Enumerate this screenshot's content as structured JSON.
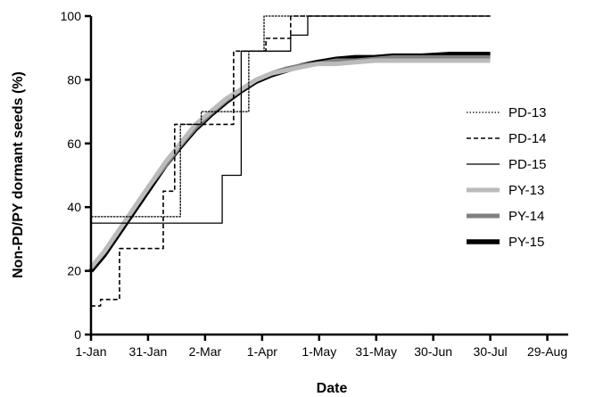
{
  "chart_data": {
    "type": "line",
    "title": "",
    "xlabel": "Date",
    "ylabel": "Non-PD/PY dormant seeds (%)",
    "x_unit": "day of year",
    "xlim": [
      1,
      252
    ],
    "ylim": [
      0,
      100
    ],
    "x_ticks": [
      {
        "day": 1,
        "label": "1-Jan"
      },
      {
        "day": 31,
        "label": "31-Jan"
      },
      {
        "day": 61,
        "label": "2-Mar"
      },
      {
        "day": 91,
        "label": "1-Apr"
      },
      {
        "day": 121,
        "label": "1-May"
      },
      {
        "day": 151,
        "label": "31-May"
      },
      {
        "day": 181,
        "label": "30-Jun"
      },
      {
        "day": 211,
        "label": "30-Jul"
      },
      {
        "day": 241,
        "label": "29-Aug"
      }
    ],
    "y_ticks": [
      0,
      20,
      40,
      60,
      80,
      100
    ],
    "grid": false,
    "legend_position": "right",
    "series": [
      {
        "name": "PD-13",
        "style": "dotted",
        "color": "#000000",
        "stroke": "thin",
        "points": [
          [
            1,
            0
          ],
          [
            1,
            37
          ],
          [
            48,
            37
          ],
          [
            48,
            66
          ],
          [
            59,
            66
          ],
          [
            59,
            70
          ],
          [
            84,
            70
          ],
          [
            84,
            89
          ],
          [
            92,
            89
          ],
          [
            92,
            100
          ],
          [
            211,
            100
          ]
        ]
      },
      {
        "name": "PD-14",
        "style": "dashed",
        "color": "#000000",
        "stroke": "medium",
        "points": [
          [
            1,
            0
          ],
          [
            1,
            9
          ],
          [
            6,
            9
          ],
          [
            6,
            11
          ],
          [
            16,
            11
          ],
          [
            16,
            27
          ],
          [
            39,
            27
          ],
          [
            39,
            45
          ],
          [
            45,
            45
          ],
          [
            45,
            66
          ],
          [
            58,
            66
          ],
          [
            58,
            66
          ],
          [
            76,
            66
          ],
          [
            76,
            89
          ],
          [
            93,
            89
          ],
          [
            93,
            93
          ],
          [
            106,
            93
          ],
          [
            106,
            100
          ],
          [
            211,
            100
          ]
        ]
      },
      {
        "name": "PD-15",
        "style": "solid",
        "color": "#000000",
        "stroke": "thin",
        "points": [
          [
            1,
            15
          ],
          [
            1,
            35
          ],
          [
            42,
            35
          ],
          [
            42,
            35
          ],
          [
            70,
            35
          ],
          [
            70,
            50
          ],
          [
            80,
            50
          ],
          [
            80,
            89
          ],
          [
            106,
            89
          ],
          [
            106,
            94
          ],
          [
            115,
            94
          ],
          [
            115,
            100
          ],
          [
            211,
            100
          ]
        ]
      },
      {
        "name": "PY-13",
        "style": "solid",
        "color": "#bbbbbb",
        "stroke": "thick",
        "points": [
          [
            1,
            21
          ],
          [
            8,
            26
          ],
          [
            16,
            33
          ],
          [
            24,
            40
          ],
          [
            32,
            47
          ],
          [
            40,
            54
          ],
          [
            48,
            60
          ],
          [
            56,
            66
          ],
          [
            64,
            70
          ],
          [
            72,
            74
          ],
          [
            80,
            77
          ],
          [
            88,
            80
          ],
          [
            96,
            82
          ],
          [
            104,
            83
          ],
          [
            112,
            84
          ],
          [
            120,
            85
          ],
          [
            130,
            85
          ],
          [
            140,
            85.5
          ],
          [
            150,
            86
          ],
          [
            160,
            86
          ],
          [
            175,
            86
          ],
          [
            190,
            86
          ],
          [
            211,
            86
          ]
        ]
      },
      {
        "name": "PY-14",
        "style": "solid",
        "color": "#808080",
        "stroke": "thick",
        "points": [
          [
            1,
            21
          ],
          [
            8,
            26
          ],
          [
            16,
            33
          ],
          [
            24,
            40
          ],
          [
            32,
            47
          ],
          [
            40,
            53
          ],
          [
            48,
            59.5
          ],
          [
            56,
            65
          ],
          [
            64,
            69.5
          ],
          [
            72,
            73.5
          ],
          [
            80,
            77
          ],
          [
            88,
            80
          ],
          [
            96,
            82
          ],
          [
            104,
            83.5
          ],
          [
            112,
            84.5
          ],
          [
            120,
            85
          ],
          [
            130,
            86
          ],
          [
            140,
            86
          ],
          [
            150,
            86.5
          ],
          [
            160,
            87
          ],
          [
            175,
            87
          ],
          [
            190,
            87
          ],
          [
            211,
            87
          ]
        ]
      },
      {
        "name": "PY-15",
        "style": "solid",
        "color": "#000000",
        "stroke": "thicker",
        "points": [
          [
            1,
            20
          ],
          [
            8,
            25
          ],
          [
            16,
            32
          ],
          [
            24,
            39
          ],
          [
            32,
            46
          ],
          [
            40,
            53
          ],
          [
            48,
            59
          ],
          [
            56,
            64.5
          ],
          [
            64,
            69
          ],
          [
            72,
            73
          ],
          [
            80,
            76.5
          ],
          [
            88,
            79.5
          ],
          [
            96,
            81.5
          ],
          [
            104,
            83
          ],
          [
            112,
            84.5
          ],
          [
            120,
            85.5
          ],
          [
            130,
            86.5
          ],
          [
            140,
            87
          ],
          [
            150,
            87
          ],
          [
            160,
            87.5
          ],
          [
            175,
            87.5
          ],
          [
            190,
            88
          ],
          [
            211,
            88
          ]
        ]
      }
    ]
  }
}
